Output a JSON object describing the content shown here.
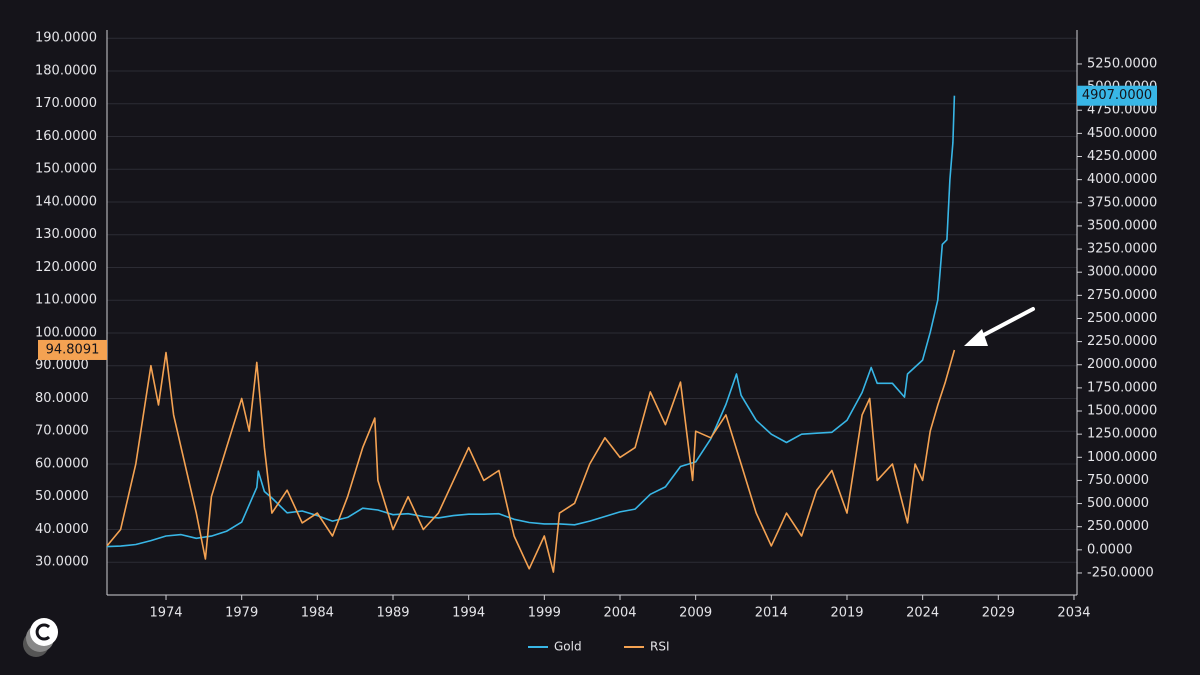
{
  "chart_data": {
    "type": "line",
    "xlim": [
      1970.1,
      2034.2
    ],
    "xticks": [
      1974,
      1979,
      1984,
      1989,
      1994,
      1999,
      2004,
      2009,
      2014,
      2019,
      2024,
      2029,
      2034
    ],
    "ylim": [
      20,
      192.5
    ],
    "yticks": [
      {
        "value": 30,
        "label": "30.0000"
      },
      {
        "value": 40,
        "label": "40.0000"
      },
      {
        "value": 50,
        "label": "50.0000"
      },
      {
        "value": 60,
        "label": "60.0000"
      },
      {
        "value": 70,
        "label": "70.0000"
      },
      {
        "value": 80,
        "label": "80.0000"
      },
      {
        "value": 90,
        "label": "90.0000"
      },
      {
        "value": 100,
        "label": "100.0000"
      },
      {
        "value": 110,
        "label": "110.0000"
      },
      {
        "value": 120,
        "label": "120.0000"
      },
      {
        "value": 130,
        "label": "130.0000"
      },
      {
        "value": 140,
        "label": "140.0000"
      },
      {
        "value": 150,
        "label": "150.0000"
      },
      {
        "value": 160,
        "label": "160.0000"
      },
      {
        "value": 170,
        "label": "170.0000"
      },
      {
        "value": 180,
        "label": "180.0000"
      },
      {
        "value": 190,
        "label": "190.0000"
      }
    ],
    "y2lim": [
      -488,
      5617
    ],
    "y2ticks": [
      {
        "value": -250,
        "label": "-250.0000"
      },
      {
        "value": 0,
        "label": "0.0000"
      },
      {
        "value": 250,
        "label": "250.0000"
      },
      {
        "value": 500,
        "label": "500.0000"
      },
      {
        "value": 750,
        "label": "750.0000"
      },
      {
        "value": 1000,
        "label": "1000.0000"
      },
      {
        "value": 1250,
        "label": "1250.0000"
      },
      {
        "value": 1500,
        "label": "1500.0000"
      },
      {
        "value": 1750,
        "label": "1750.0000"
      },
      {
        "value": 2000,
        "label": "2000.0000"
      },
      {
        "value": 2250,
        "label": "2250.0000"
      },
      {
        "value": 2500,
        "label": "2500.0000"
      },
      {
        "value": 2750,
        "label": "2750.0000"
      },
      {
        "value": 3000,
        "label": "3000.0000"
      },
      {
        "value": 3250,
        "label": "3250.0000"
      },
      {
        "value": 3500,
        "label": "3500.0000"
      },
      {
        "value": 3750,
        "label": "3750.0000"
      },
      {
        "value": 4000,
        "label": "4000.0000"
      },
      {
        "value": 4250,
        "label": "4250.0000"
      },
      {
        "value": 4500,
        "label": "4500.0000"
      },
      {
        "value": 4750,
        "label": "4750.0000"
      },
      {
        "value": 5000,
        "label": "5000.0000"
      },
      {
        "value": 5250,
        "label": "5250.0000"
      }
    ],
    "grid": true,
    "series": [
      {
        "name": "Gold",
        "color": "#38b6e6",
        "axis": "y2",
        "value_label": "4907.0000",
        "x": [
          1970.1,
          1971,
          1972,
          1973,
          1974,
          1975,
          1976,
          1977,
          1978,
          1979,
          1980,
          1980.1,
          1980.5,
          1981,
          1982,
          1983,
          1984,
          1985,
          1986,
          1987,
          1988,
          1989,
          1990,
          1991,
          1992,
          1993,
          1994,
          1995,
          1996,
          1997,
          1998,
          1999,
          2000,
          2001,
          2002,
          2003,
          2004,
          2005,
          2006,
          2007,
          2008,
          2009,
          2010,
          2011,
          2011.7,
          2012,
          2013,
          2014,
          2015,
          2016,
          2017,
          2018,
          2019,
          2020,
          2020.6,
          2021,
          2022,
          2022.8,
          2023,
          2024,
          2024.5,
          2025,
          2025.3,
          2025.6,
          2025.8,
          2026,
          2026.1
        ],
        "values": [
          35,
          40,
          58,
          100,
          150,
          165,
          125,
          148,
          200,
          300,
          675,
          850,
          630,
          560,
          400,
          420,
          370,
          310,
          350,
          450,
          430,
          380,
          390,
          360,
          345,
          370,
          385,
          385,
          390,
          330,
          295,
          280,
          280,
          270,
          310,
          360,
          410,
          440,
          600,
          680,
          900,
          950,
          1200,
          1570,
          1900,
          1670,
          1400,
          1250,
          1160,
          1250,
          1260,
          1270,
          1400,
          1700,
          1970,
          1800,
          1800,
          1650,
          1900,
          2050,
          2350,
          2700,
          3300,
          3350,
          4000,
          4400,
          4907
        ]
      },
      {
        "name": "RSI",
        "color": "#f4a252",
        "value_label": "94.8091",
        "x": [
          1970.1,
          1971,
          1972,
          1973,
          1973.5,
          1974,
          1974.5,
          1975,
          1976,
          1976.6,
          1977,
          1978,
          1979,
          1979.5,
          1980,
          1980.5,
          1981,
          1982,
          1983,
          1984,
          1985,
          1986,
          1987,
          1987.8,
          1988,
          1989,
          1990,
          1991,
          1992,
          1993,
          1994,
          1995,
          1996,
          1997,
          1998,
          1999,
          1999.6,
          2000,
          2001,
          2002,
          2003,
          2004,
          2005,
          2006,
          2007,
          2008,
          2008.8,
          2009,
          2010,
          2011,
          2012,
          2013,
          2014,
          2015,
          2016,
          2017,
          2018,
          2019,
          2020,
          2020.5,
          2021,
          2022,
          2023,
          2023.5,
          2024,
          2024.5,
          2025,
          2025.5,
          2026.1
        ],
        "values": [
          35,
          40,
          60,
          90,
          78,
          94,
          75,
          65,
          45,
          31,
          50,
          65,
          80,
          70,
          91,
          65,
          45,
          52,
          42,
          45,
          38,
          50,
          65,
          74,
          55,
          40,
          50,
          40,
          45,
          55,
          65,
          55,
          58,
          38,
          28,
          38,
          27,
          45,
          48,
          60,
          68,
          62,
          65,
          82,
          72,
          85,
          55,
          70,
          68,
          75,
          60,
          45,
          35,
          45,
          38,
          52,
          58,
          45,
          75,
          80,
          55,
          60,
          42,
          60,
          55,
          70,
          78,
          85,
          94.8091
        ]
      }
    ]
  }
}
